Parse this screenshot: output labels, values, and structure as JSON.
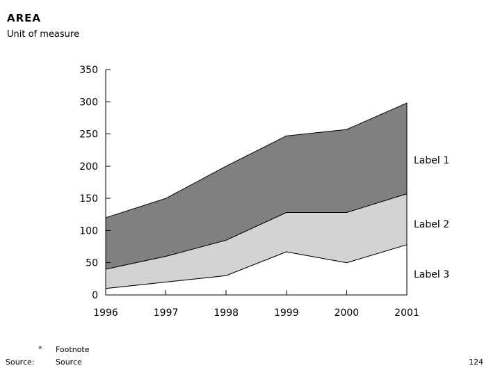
{
  "header": {
    "title": "AREA",
    "subtitle": "Unit of measure"
  },
  "chart_data": {
    "type": "area",
    "title": "AREA",
    "unit_of_measure": "Unit of measure",
    "categories": [
      "1996",
      "1997",
      "1998",
      "1999",
      "2000",
      "2001"
    ],
    "series": [
      {
        "label": "Label 1",
        "fill": "#808080",
        "values": [
          120,
          150,
          200,
          247,
          257,
          298
        ]
      },
      {
        "label": "Label 2",
        "fill": "#d3d3d3",
        "values": [
          40,
          60,
          85,
          128,
          128,
          157
        ]
      },
      {
        "label": "Label 3",
        "fill": "#ffffff",
        "values": [
          10,
          20,
          30,
          67,
          50,
          78
        ]
      }
    ],
    "values_are": "upper boundary of each band read from y-axis",
    "ylim": [
      0,
      350
    ],
    "yticks": [
      0,
      50,
      100,
      150,
      200,
      250,
      300,
      350
    ],
    "xlabel": "",
    "ylabel": "",
    "grid": false,
    "legend_position": "labels at right edge of plot"
  },
  "footer": {
    "footnote_marker": "*",
    "footnote": "Footnote",
    "source_label": "Source:",
    "source": "Source",
    "page_number": "124"
  },
  "colors": {
    "band_dark": "#808080",
    "band_light": "#d3d3d3",
    "band_white": "#ffffff",
    "axis": "#000000",
    "text": "#000000",
    "background": "#ffffff"
  }
}
